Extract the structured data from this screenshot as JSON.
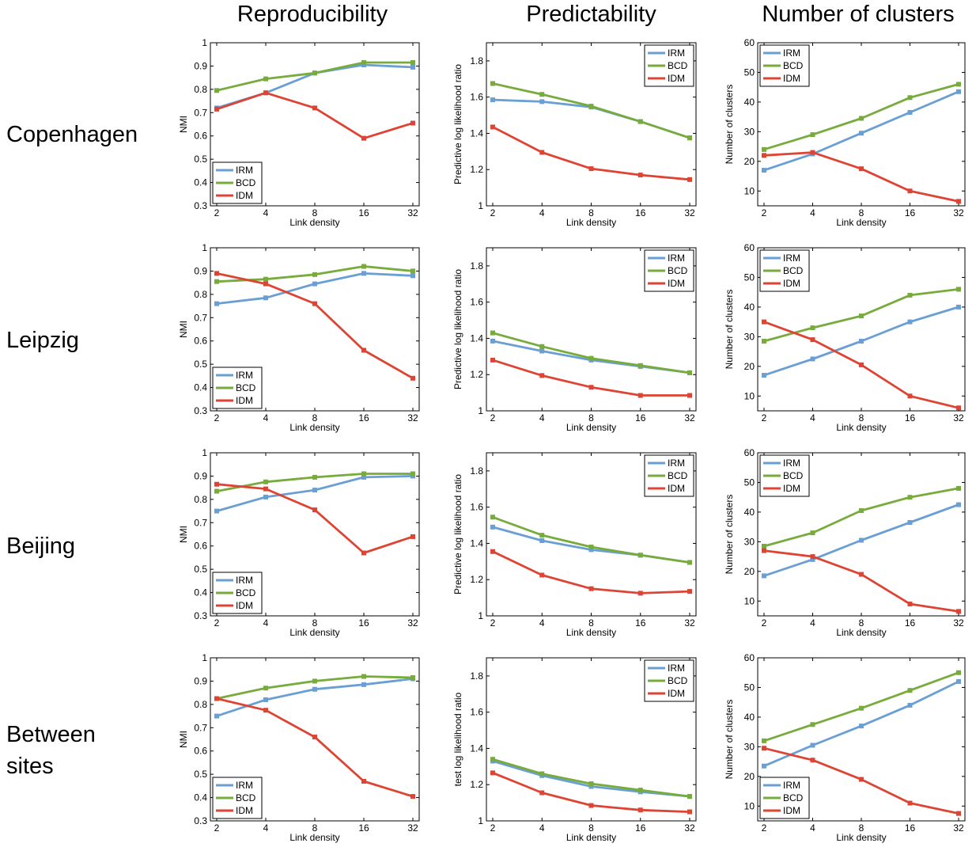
{
  "column_titles": [
    "Reproducibility",
    "Predictability",
    "Number of clusters"
  ],
  "row_labels": [
    "Copenhagen",
    "Leipzig",
    "Beijing",
    "Between sites"
  ],
  "colors": {
    "IRM": "#6a9fd4",
    "BCD": "#77ab3c",
    "IDM": "#de4433"
  },
  "chart_data": [
    {
      "type": "line",
      "row": 0,
      "col": 0,
      "xlabel": "Link density",
      "ylabel": "NMI",
      "categories": [
        "2",
        "4",
        "8",
        "16",
        "32"
      ],
      "ylim": [
        0.3,
        1
      ],
      "yticks": [
        "0.3",
        "0.4",
        "0.5",
        "0.6",
        "0.7",
        "0.8",
        "0.9",
        "1"
      ],
      "legend": "bottom-left",
      "series": [
        {
          "name": "IRM",
          "values": [
            0.72,
            0.785,
            0.87,
            0.905,
            0.895
          ]
        },
        {
          "name": "BCD",
          "values": [
            0.795,
            0.845,
            0.87,
            0.915,
            0.915
          ]
        },
        {
          "name": "IDM",
          "values": [
            0.715,
            0.785,
            0.72,
            0.59,
            0.655
          ]
        }
      ]
    },
    {
      "type": "line",
      "row": 0,
      "col": 1,
      "xlabel": "Link density",
      "ylabel": "Predictive log likelihood ratio",
      "categories": [
        "2",
        "4",
        "8",
        "16",
        "32"
      ],
      "ylim": [
        1,
        1.9
      ],
      "yticks": [
        "1",
        "1.2",
        "1.4",
        "1.6",
        "1.8"
      ],
      "legend": "top-right",
      "series": [
        {
          "name": "IRM",
          "values": [
            1.585,
            1.575,
            1.545,
            1.465,
            1.375
          ]
        },
        {
          "name": "BCD",
          "values": [
            1.675,
            1.615,
            1.55,
            1.465,
            1.375
          ]
        },
        {
          "name": "IDM",
          "values": [
            1.435,
            1.295,
            1.205,
            1.17,
            1.145
          ]
        }
      ]
    },
    {
      "type": "line",
      "row": 0,
      "col": 2,
      "xlabel": "Link density",
      "ylabel": "Number of clusters",
      "categories": [
        "2",
        "4",
        "8",
        "16",
        "32"
      ],
      "ylim": [
        5,
        60
      ],
      "yticks": [
        "10",
        "20",
        "30",
        "40",
        "50",
        "60"
      ],
      "legend": "top-left",
      "series": [
        {
          "name": "IRM",
          "values": [
            17,
            22.5,
            29.5,
            36.5,
            43.5
          ]
        },
        {
          "name": "BCD",
          "values": [
            24,
            29,
            34.5,
            41.5,
            46
          ]
        },
        {
          "name": "IDM",
          "values": [
            22,
            23,
            17.5,
            10,
            6.5
          ]
        }
      ]
    },
    {
      "type": "line",
      "row": 1,
      "col": 0,
      "xlabel": "Link density",
      "ylabel": "NMI",
      "categories": [
        "2",
        "4",
        "8",
        "16",
        "32"
      ],
      "ylim": [
        0.3,
        1
      ],
      "yticks": [
        "0.3",
        "0.4",
        "0.5",
        "0.6",
        "0.7",
        "0.8",
        "0.9",
        "1"
      ],
      "legend": "bottom-left",
      "series": [
        {
          "name": "IRM",
          "values": [
            0.76,
            0.785,
            0.845,
            0.89,
            0.88
          ]
        },
        {
          "name": "BCD",
          "values": [
            0.855,
            0.865,
            0.885,
            0.92,
            0.9
          ]
        },
        {
          "name": "IDM",
          "values": [
            0.89,
            0.845,
            0.76,
            0.56,
            0.44
          ]
        }
      ]
    },
    {
      "type": "line",
      "row": 1,
      "col": 1,
      "xlabel": "Link density",
      "ylabel": "Predictive log likelihood ratio",
      "categories": [
        "2",
        "4",
        "8",
        "16",
        "32"
      ],
      "ylim": [
        1,
        1.9
      ],
      "yticks": [
        "1",
        "1.2",
        "1.4",
        "1.6",
        "1.8"
      ],
      "legend": "top-right",
      "series": [
        {
          "name": "IRM",
          "values": [
            1.385,
            1.33,
            1.28,
            1.245,
            1.21
          ]
        },
        {
          "name": "BCD",
          "values": [
            1.43,
            1.355,
            1.29,
            1.25,
            1.21
          ]
        },
        {
          "name": "IDM",
          "values": [
            1.28,
            1.195,
            1.13,
            1.085,
            1.085
          ]
        }
      ]
    },
    {
      "type": "line",
      "row": 1,
      "col": 2,
      "xlabel": "Link density",
      "ylabel": "Number of clusters",
      "categories": [
        "2",
        "4",
        "8",
        "16",
        "32"
      ],
      "ylim": [
        5,
        60
      ],
      "yticks": [
        "10",
        "20",
        "30",
        "40",
        "50",
        "60"
      ],
      "legend": "top-left",
      "series": [
        {
          "name": "IRM",
          "values": [
            17,
            22.5,
            28.5,
            35,
            40
          ]
        },
        {
          "name": "BCD",
          "values": [
            28.5,
            33,
            37,
            44,
            46
          ]
        },
        {
          "name": "IDM",
          "values": [
            35,
            29,
            20.5,
            10,
            6
          ]
        }
      ]
    },
    {
      "type": "line",
      "row": 2,
      "col": 0,
      "xlabel": "Link density",
      "ylabel": "NMI",
      "categories": [
        "2",
        "4",
        "8",
        "16",
        "32"
      ],
      "ylim": [
        0.3,
        1
      ],
      "yticks": [
        "0.3",
        "0.4",
        "0.5",
        "0.6",
        "0.7",
        "0.8",
        "0.9",
        "1"
      ],
      "legend": "bottom-left",
      "series": [
        {
          "name": "IRM",
          "values": [
            0.75,
            0.81,
            0.84,
            0.895,
            0.9
          ]
        },
        {
          "name": "BCD",
          "values": [
            0.835,
            0.875,
            0.895,
            0.91,
            0.91
          ]
        },
        {
          "name": "IDM",
          "values": [
            0.865,
            0.845,
            0.755,
            0.57,
            0.64
          ]
        }
      ]
    },
    {
      "type": "line",
      "row": 2,
      "col": 1,
      "xlabel": "Link density",
      "ylabel": "Predictive log likelihood ratio",
      "categories": [
        "2",
        "4",
        "8",
        "16",
        "32"
      ],
      "ylim": [
        1,
        1.9
      ],
      "yticks": [
        "1",
        "1.2",
        "1.4",
        "1.6",
        "1.8"
      ],
      "legend": "top-right",
      "series": [
        {
          "name": "IRM",
          "values": [
            1.49,
            1.415,
            1.365,
            1.335,
            1.295
          ]
        },
        {
          "name": "BCD",
          "values": [
            1.545,
            1.445,
            1.38,
            1.335,
            1.295
          ]
        },
        {
          "name": "IDM",
          "values": [
            1.355,
            1.225,
            1.15,
            1.125,
            1.135
          ]
        }
      ]
    },
    {
      "type": "line",
      "row": 2,
      "col": 2,
      "xlabel": "Link density",
      "ylabel": "Number of clusters",
      "categories": [
        "2",
        "4",
        "8",
        "16",
        "32"
      ],
      "ylim": [
        5,
        60
      ],
      "yticks": [
        "10",
        "20",
        "30",
        "40",
        "50",
        "60"
      ],
      "legend": "top-left",
      "series": [
        {
          "name": "IRM",
          "values": [
            18.5,
            24,
            30.5,
            36.5,
            42.5
          ]
        },
        {
          "name": "BCD",
          "values": [
            28.5,
            33,
            40.5,
            45,
            48
          ]
        },
        {
          "name": "IDM",
          "values": [
            27,
            25,
            19,
            9,
            6.5
          ]
        }
      ]
    },
    {
      "type": "line",
      "row": 3,
      "col": 0,
      "xlabel": "Link density",
      "ylabel": "NMI",
      "categories": [
        "2",
        "4",
        "8",
        "16",
        "32"
      ],
      "ylim": [
        0.3,
        1
      ],
      "yticks": [
        "0.3",
        "0.4",
        "0.5",
        "0.6",
        "0.7",
        "0.8",
        "0.9",
        "1"
      ],
      "legend": "bottom-left",
      "series": [
        {
          "name": "IRM",
          "values": [
            0.75,
            0.82,
            0.865,
            0.885,
            0.91
          ]
        },
        {
          "name": "BCD",
          "values": [
            0.825,
            0.87,
            0.9,
            0.92,
            0.915
          ]
        },
        {
          "name": "IDM",
          "values": [
            0.825,
            0.775,
            0.66,
            0.47,
            0.405
          ]
        }
      ]
    },
    {
      "type": "line",
      "row": 3,
      "col": 1,
      "xlabel": "Link density",
      "ylabel": "test log likelihood ratio",
      "categories": [
        "2",
        "4",
        "8",
        "16",
        "32"
      ],
      "ylim": [
        1,
        1.9
      ],
      "yticks": [
        "1",
        "1.2",
        "1.4",
        "1.6",
        "1.8"
      ],
      "legend": "top-right",
      "series": [
        {
          "name": "IRM",
          "values": [
            1.33,
            1.25,
            1.19,
            1.16,
            1.135
          ]
        },
        {
          "name": "BCD",
          "values": [
            1.34,
            1.26,
            1.205,
            1.17,
            1.135
          ]
        },
        {
          "name": "IDM",
          "values": [
            1.265,
            1.155,
            1.085,
            1.06,
            1.05
          ]
        }
      ]
    },
    {
      "type": "line",
      "row": 3,
      "col": 2,
      "xlabel": "Link density",
      "ylabel": "Number of clusters",
      "categories": [
        "2",
        "4",
        "8",
        "16",
        "32"
      ],
      "ylim": [
        5,
        60
      ],
      "yticks": [
        "10",
        "20",
        "30",
        "40",
        "50",
        "60"
      ],
      "legend": "bottom-left",
      "series": [
        {
          "name": "IRM",
          "values": [
            23.5,
            30.5,
            37,
            44,
            52
          ]
        },
        {
          "name": "BCD",
          "values": [
            32,
            37.5,
            43,
            49,
            55
          ]
        },
        {
          "name": "IDM",
          "values": [
            29.5,
            25.5,
            19,
            11,
            7.5
          ]
        }
      ]
    }
  ]
}
